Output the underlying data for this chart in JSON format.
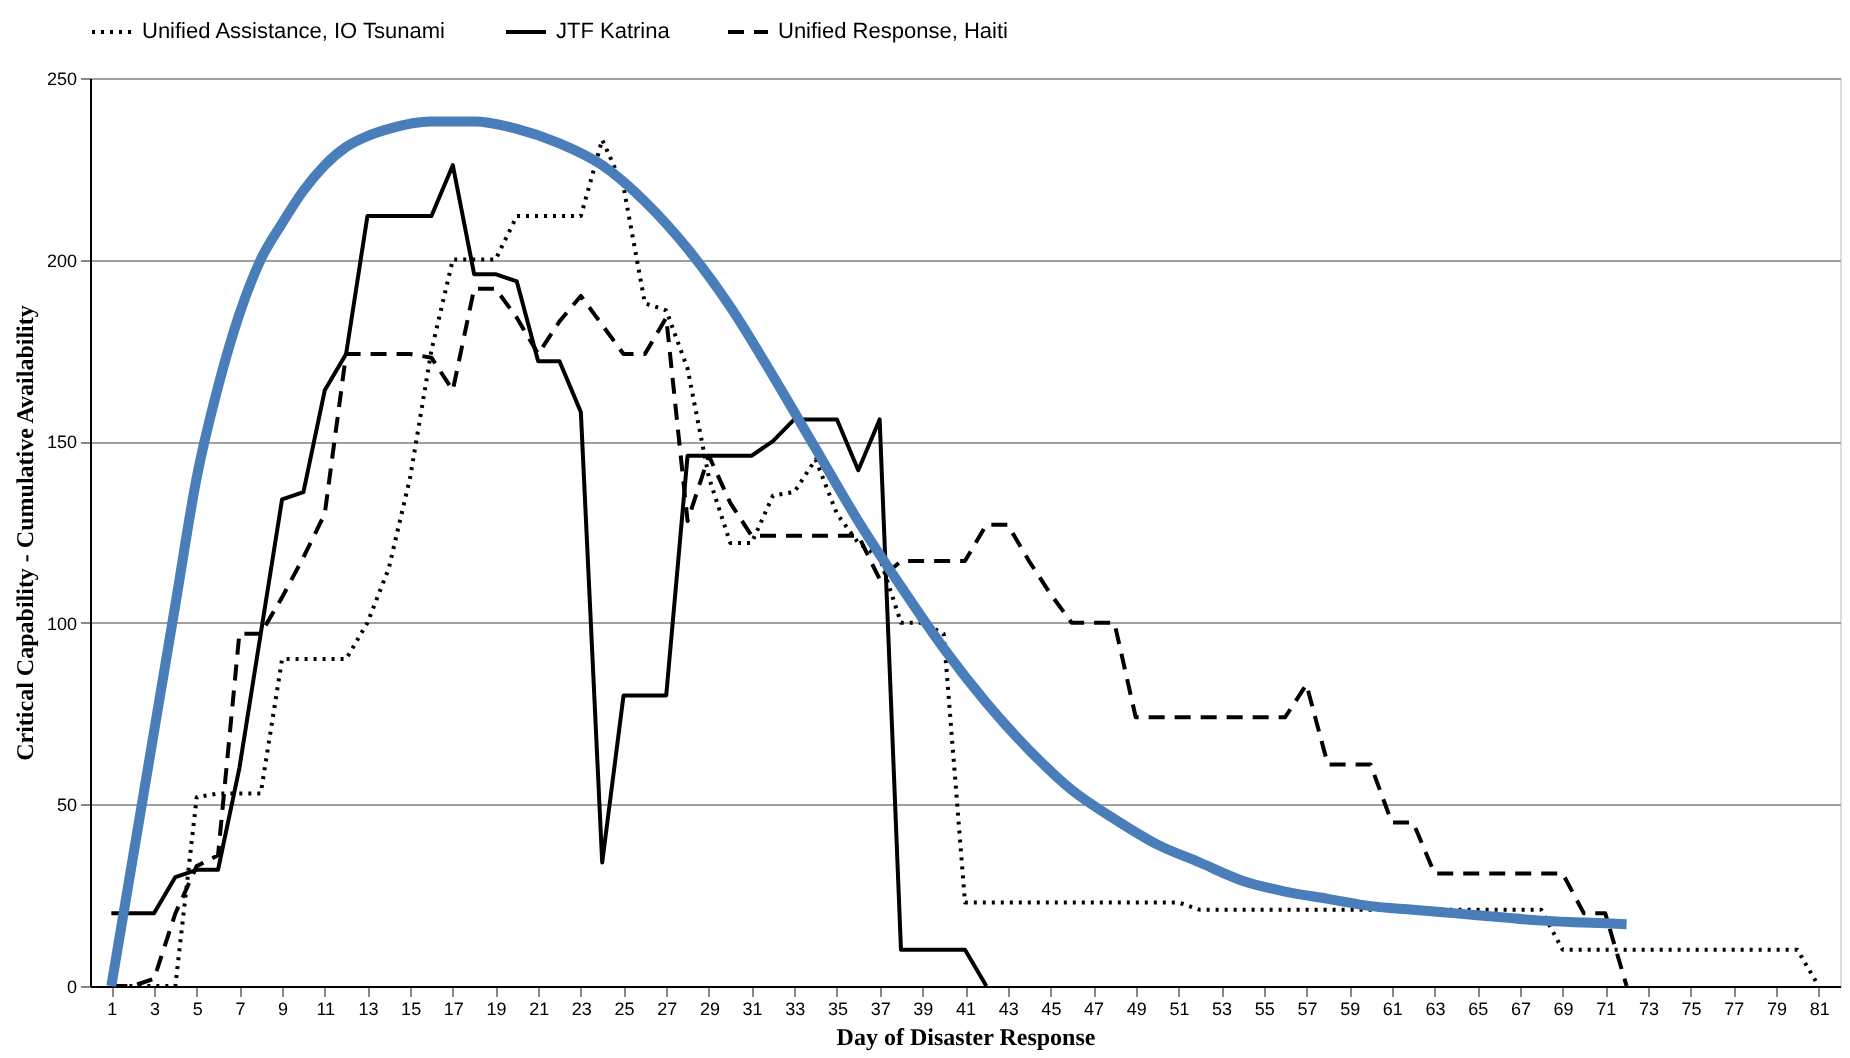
{
  "chart_data": {
    "type": "line",
    "xlabel": "Day of Disaster Response",
    "ylabel": "Critical Capability - Cumulative Availability",
    "xlim": [
      0,
      82
    ],
    "xticks": [
      1,
      3,
      5,
      7,
      9,
      11,
      13,
      15,
      17,
      19,
      21,
      23,
      25,
      27,
      29,
      31,
      33,
      35,
      37,
      39,
      41,
      43,
      45,
      47,
      49,
      51,
      53,
      55,
      57,
      59,
      61,
      63,
      65,
      67,
      69,
      71,
      73,
      75,
      77,
      79,
      81
    ],
    "ylim": [
      0,
      250
    ],
    "yticks": [
      0,
      50,
      100,
      150,
      200,
      250
    ],
    "grid": "y",
    "legend": "top",
    "marker": "none",
    "series": [
      {
        "name": "Unified Assistance, IO Tsunami",
        "color": "#000000",
        "line_style": "dotted",
        "x": [
          1,
          2,
          3,
          4,
          5,
          6,
          7,
          8,
          9,
          10,
          11,
          12,
          13,
          14,
          15,
          16,
          17,
          18,
          19,
          20,
          21,
          22,
          23,
          24,
          25,
          26,
          27,
          28,
          29,
          30,
          31,
          32,
          33,
          34,
          35,
          36,
          37,
          38,
          39,
          40,
          41,
          51,
          52,
          68,
          69,
          80,
          81
        ],
        "values": [
          0,
          0,
          0,
          0,
          52,
          53,
          53,
          53,
          90,
          90,
          90,
          90,
          100,
          115,
          140,
          175,
          200,
          200,
          200,
          212,
          212,
          212,
          212,
          233,
          220,
          188,
          186,
          170,
          140,
          122,
          122,
          135,
          136,
          145,
          130,
          122,
          118,
          100,
          100,
          97,
          23,
          23,
          21,
          21,
          10,
          10,
          0
        ]
      },
      {
        "name": "JTF Katrina",
        "color": "#000000",
        "line_style": "solid",
        "x": [
          1,
          2,
          3,
          4,
          5,
          6,
          7,
          8,
          9,
          10,
          11,
          12,
          13,
          14,
          15,
          16,
          17,
          18,
          19,
          20,
          21,
          22,
          23,
          24,
          25,
          26,
          27,
          28,
          29,
          30,
          31,
          32,
          33,
          34,
          35,
          36,
          37,
          38,
          39,
          40,
          41,
          42
        ],
        "values": [
          20,
          20,
          20,
          30,
          32,
          32,
          60,
          97,
          134,
          136,
          164,
          174,
          212,
          212,
          212,
          212,
          226,
          196,
          196,
          194,
          172,
          172,
          158,
          34,
          80,
          80,
          80,
          146,
          146,
          146,
          146,
          150,
          156,
          156,
          156,
          142,
          156,
          10,
          10,
          10,
          10,
          0
        ]
      },
      {
        "name": "Unified Response,  Haiti",
        "color": "#000000",
        "line_style": "dashed",
        "x": [
          1,
          2,
          3,
          4,
          5,
          6,
          7,
          8,
          9,
          10,
          11,
          12,
          13,
          14,
          15,
          16,
          17,
          18,
          19,
          20,
          21,
          22,
          23,
          24,
          25,
          26,
          27,
          28,
          29,
          30,
          31,
          32,
          33,
          34,
          35,
          36,
          37,
          38,
          39,
          40,
          41,
          42,
          43,
          44,
          45,
          46,
          47,
          48,
          49,
          50,
          51,
          52,
          53,
          54,
          55,
          56,
          57,
          58,
          59,
          60,
          61,
          62,
          63,
          64,
          65,
          66,
          67,
          68,
          69,
          70,
          71,
          72
        ],
        "values": [
          0,
          0,
          2,
          20,
          33,
          36,
          97,
          97,
          107,
          118,
          130,
          174,
          174,
          174,
          174,
          173,
          164,
          192,
          192,
          184,
          174,
          183,
          190,
          182,
          174,
          174,
          184,
          128,
          146,
          133,
          124,
          124,
          124,
          124,
          124,
          124,
          112,
          117,
          117,
          117,
          117,
          127,
          127,
          117,
          108,
          100,
          100,
          100,
          74,
          74,
          74,
          74,
          74,
          74,
          74,
          74,
          83,
          61,
          61,
          61,
          45,
          45,
          31,
          31,
          31,
          31,
          31,
          31,
          31,
          20,
          20,
          0
        ]
      },
      {
        "color": "#4a7ebb",
        "line_style": "solid",
        "x": [
          1,
          2,
          3,
          4,
          5,
          6,
          7,
          8,
          9,
          10,
          11,
          12,
          13,
          14,
          16,
          18,
          20,
          22,
          24,
          26,
          28,
          30,
          32,
          34,
          36,
          38,
          40,
          42,
          44,
          46,
          48,
          50,
          52,
          54,
          56,
          58,
          60,
          62,
          64,
          66,
          68,
          70,
          72
        ],
        "values": [
          0,
          35,
          70,
          105,
          140,
          165,
          185,
          200,
          210,
          219,
          226,
          231,
          234,
          236,
          238,
          238,
          236,
          232,
          226,
          216,
          203,
          187,
          168,
          148,
          128,
          110,
          93,
          78,
          65,
          54,
          46,
          39,
          34,
          29,
          26,
          24,
          22,
          21,
          20,
          19,
          18,
          17.5,
          17
        ]
      }
    ]
  }
}
